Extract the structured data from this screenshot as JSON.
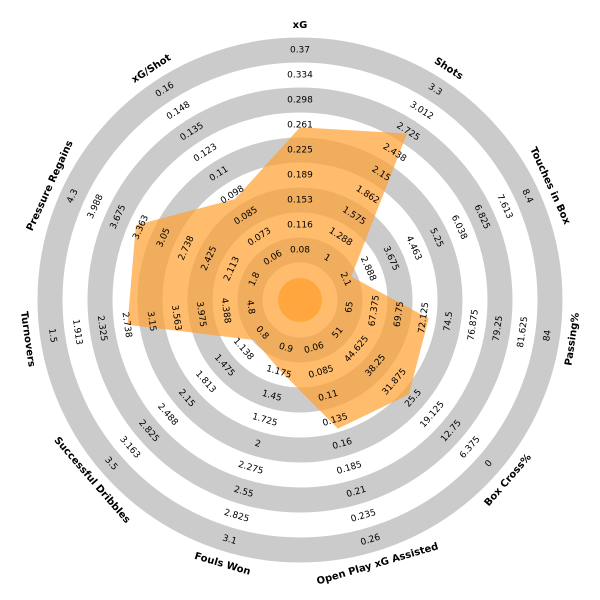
{
  "chart_data": {
    "type": "radar",
    "color": "#ff9f2e",
    "params": [
      {
        "name": "xG",
        "ticks": [
          0.08,
          0.116,
          0.153,
          0.189,
          0.225,
          0.261,
          0.298,
          0.334,
          0.37
        ],
        "value": 0.258
      },
      {
        "name": "Shots",
        "ticks": [
          1,
          1.288,
          1.575,
          1.862,
          2.15,
          2.438,
          2.725,
          3.012,
          3.3
        ],
        "value": 2.7
      },
      {
        "name": "Touches in Box",
        "ticks": [
          2.1,
          2.888,
          3.675,
          4.463,
          5.25,
          6.038,
          6.825,
          7.613,
          8.4
        ],
        "value": 2.3
      },
      {
        "name": "Passing%",
        "ticks": [
          65,
          67.375,
          69.75,
          72.125,
          74.5,
          76.875,
          79.25,
          81.625,
          84
        ],
        "value": 72.6
      },
      {
        "name": "Box Cross%",
        "ticks": [
          51,
          44.625,
          38.25,
          31.875,
          25.5,
          19.125,
          12.75,
          6.375,
          0
        ],
        "value": 27
      },
      {
        "name": "Open Play xG Assisted",
        "ticks": [
          0.06,
          0.085,
          0.11,
          0.135,
          0.16,
          0.185,
          0.21,
          0.235,
          0.26
        ],
        "value": 0.144
      },
      {
        "name": "Fouls Won",
        "ticks": [
          0.9,
          1.175,
          1.45,
          1.725,
          2,
          2.275,
          2.55,
          2.825,
          3.1
        ],
        "value": 1.15
      },
      {
        "name": "Successful Dribbles",
        "ticks": [
          0.8,
          1.138,
          1.475,
          1.813,
          2.15,
          2.488,
          2.825,
          3.163,
          3.5
        ],
        "value": 0.95
      },
      {
        "name": "Turnovers",
        "ticks": [
          4.8,
          4.388,
          3.975,
          3.563,
          3.15,
          2.738,
          2.325,
          1.913,
          1.5
        ],
        "value": 2.75
      },
      {
        "name": "Pressure Regains",
        "ticks": [
          1.8,
          2.113,
          2.425,
          2.738,
          3.05,
          3.363,
          3.675,
          3.988,
          4.3
        ],
        "value": 3.43
      },
      {
        "name": "xG/Shot",
        "ticks": [
          0.06,
          0.073,
          0.085,
          0.098,
          0.11,
          0.123,
          0.135,
          0.148,
          0.16
        ],
        "value": 0.095
      }
    ]
  }
}
